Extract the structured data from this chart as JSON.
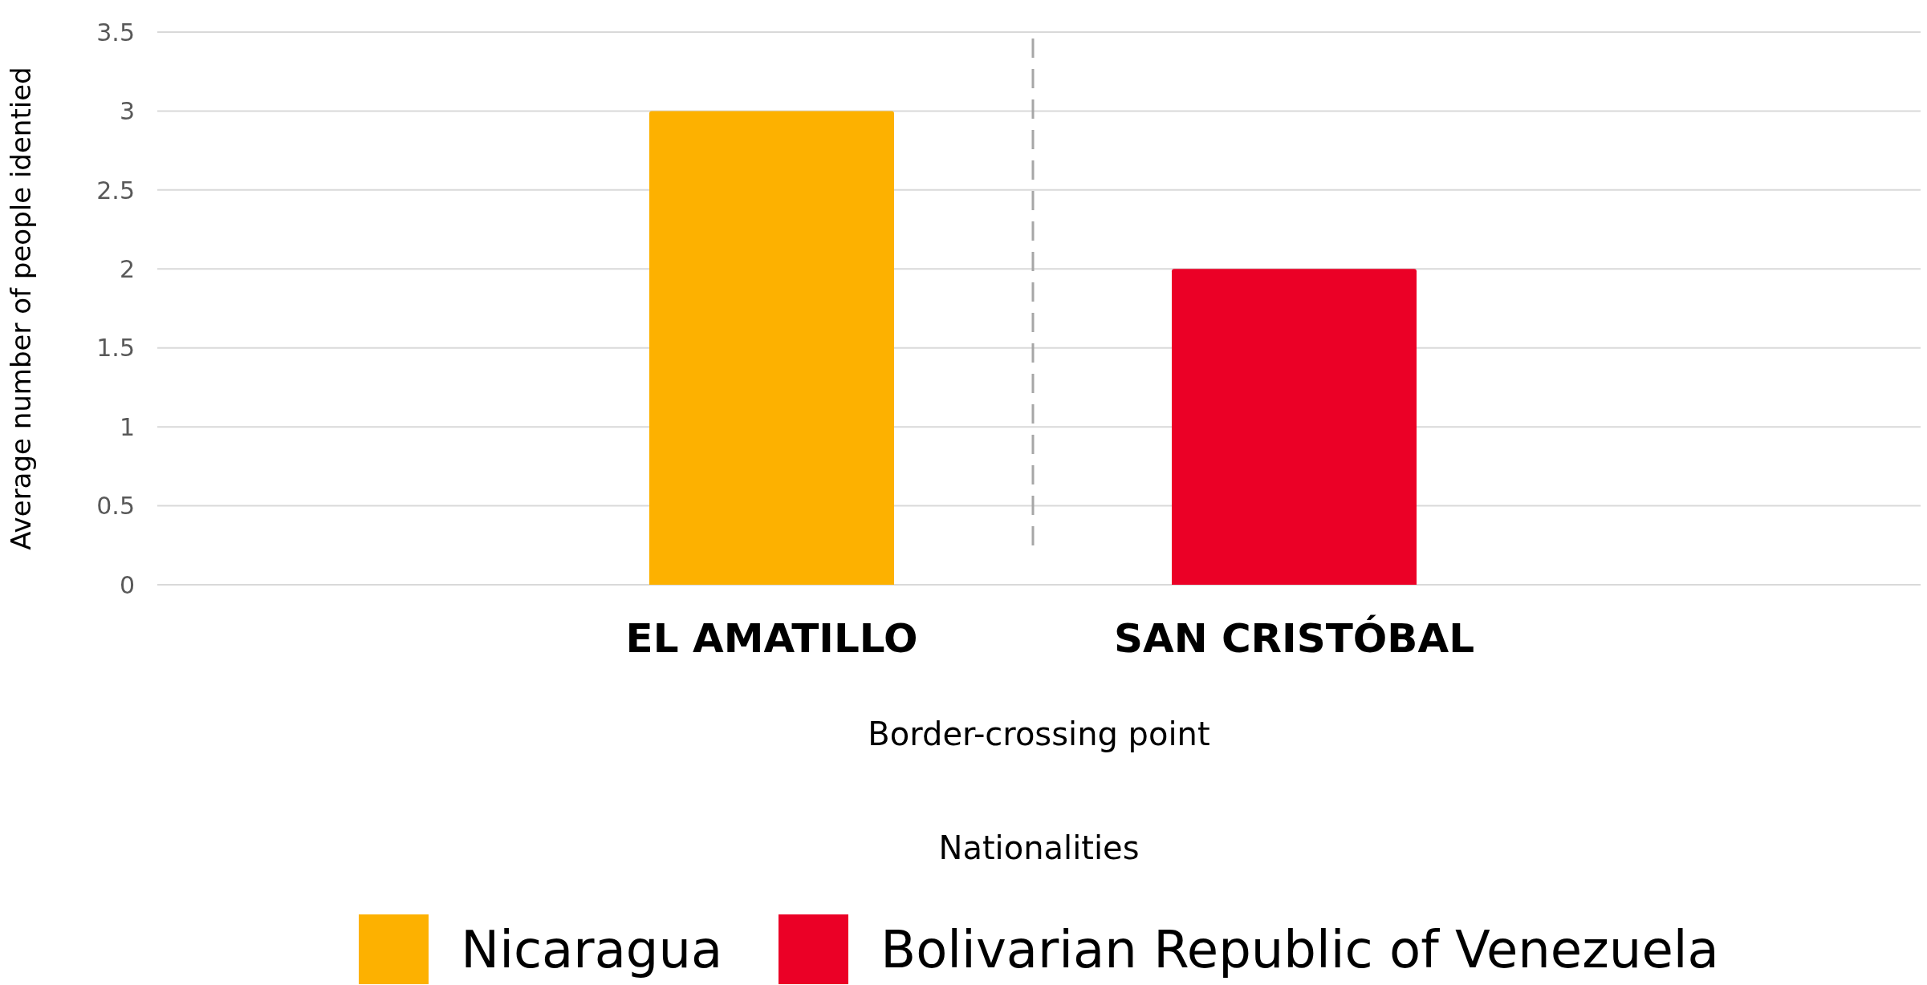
{
  "chart_data": {
    "type": "bar",
    "ylabel": "Average number of people identied",
    "xlabel": "Border-crossing point",
    "legend_title": "Nationalities",
    "categories": [
      "EL AMATILLO",
      "SAN CRISTÓBAL"
    ],
    "series": [
      {
        "name": "Nicaragua",
        "color": "#fdb100",
        "values": [
          3,
          null
        ]
      },
      {
        "name": "Bolivarian Republic of Venezuela",
        "color": "#eb0026",
        "values": [
          null,
          2
        ]
      }
    ],
    "ylim": [
      0,
      3.5
    ],
    "yticks": [
      0,
      0.5,
      1,
      1.5,
      2,
      2.5,
      3,
      3.5
    ],
    "grid": "y",
    "legend": "bottom"
  }
}
